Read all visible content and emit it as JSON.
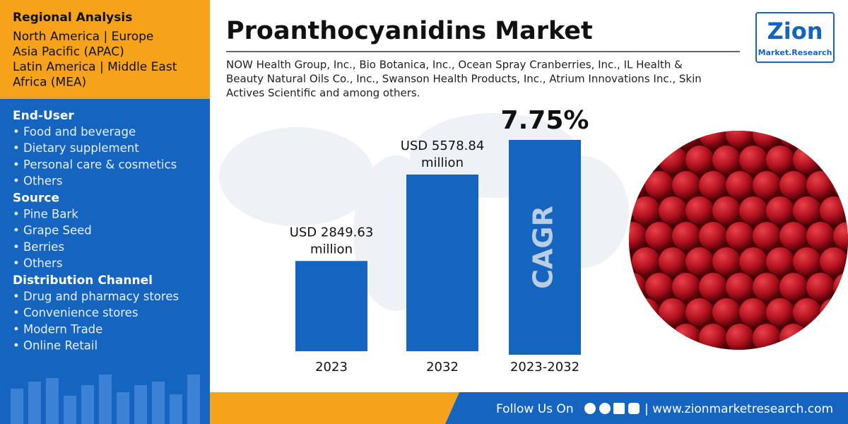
{
  "sidebar": {
    "regional": {
      "title": "Regional Analysis",
      "items": [
        "North America | Europe",
        "Asia Pacific (APAC)",
        "Latin America | Middle East",
        "Africa (MEA)"
      ]
    },
    "segments": [
      {
        "title": "End-User",
        "items": [
          "• Food and beverage",
          "• Dietary supplement",
          "• Personal care & cosmetics",
          "• Others"
        ]
      },
      {
        "title": "Source",
        "items": [
          "• Pine Bark",
          "• Grape Seed",
          "• Berries",
          "• Others"
        ]
      },
      {
        "title": "Distribution Channel",
        "items": [
          "• Drug and pharmacy stores",
          "• Convenience stores",
          "• Modern Trade",
          "• Online Retail"
        ]
      }
    ]
  },
  "title": "Proanthocyanidins Market",
  "subtitle": [
    "NOW Health Group, Inc., Bio Botanica, Inc., Ocean Spray Cranberries, Inc., IL Health &",
    "Beauty Natural Oils Co., Inc., Swanson Health Products, Inc., Atrium Innovations Inc., Skin",
    "Actives Scientific and among others."
  ],
  "chart": {
    "categories": [
      "2023",
      "2032"
    ],
    "values": [
      2849.63,
      5578.84
    ],
    "value_labels": [
      [
        "USD 2849.63",
        "million"
      ],
      [
        "USD 5578.84",
        "million"
      ]
    ]
  },
  "cagr": {
    "value_label": "7.75%",
    "label": "CAGR",
    "period": "2023-2032"
  },
  "logo": {
    "name": "Zion",
    "sub": "Market.Research"
  },
  "footer": {
    "follow": "Follow Us On",
    "url": "| www.zionmarketresearch.com"
  }
}
